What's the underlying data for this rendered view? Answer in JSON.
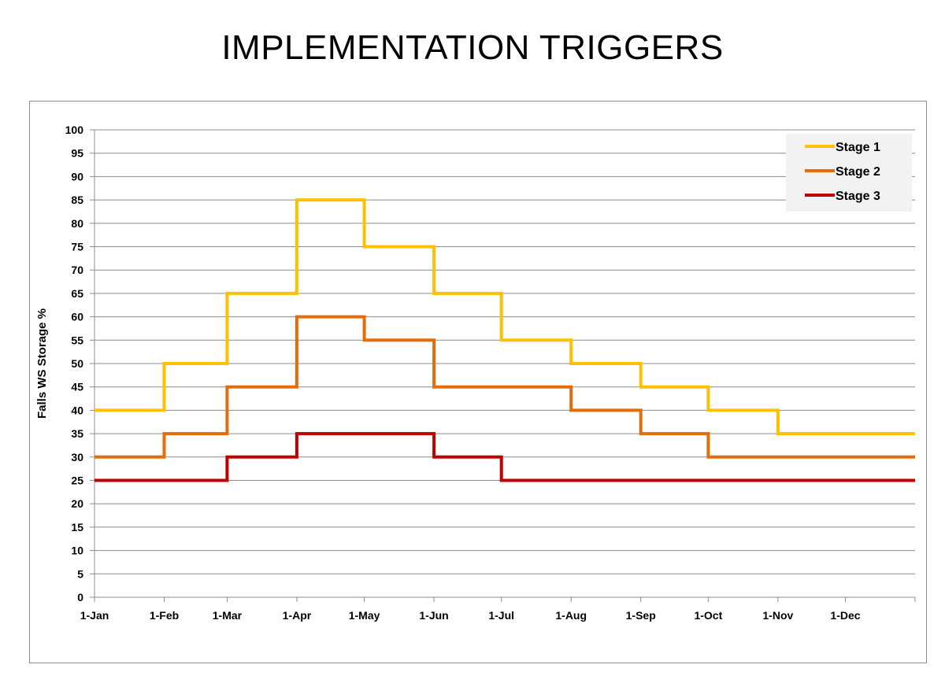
{
  "page": {
    "title": "IMPLEMENTATION TRIGGERS"
  },
  "chart_data": {
    "type": "line",
    "step": true,
    "ylabel": "Falls WS Storage %",
    "xlabel": "",
    "ylim": [
      0,
      100
    ],
    "ytick_step": 5,
    "grid": true,
    "legend_position": "top-right",
    "x_ticks": [
      "1-Jan",
      "1-Feb",
      "1-Mar",
      "1-Apr",
      "1-May",
      "1-Jun",
      "1-Jul",
      "1-Aug",
      "1-Sep",
      "1-Oct",
      "1-Nov",
      "1-Dec"
    ],
    "x_end": "31-Dec",
    "series": [
      {
        "name": "Stage 1",
        "color": "#FFC000",
        "steps": [
          {
            "from": "1-Jan",
            "value": 40
          },
          {
            "from": "1-Feb",
            "value": 50
          },
          {
            "from": "1-Mar",
            "value": 65
          },
          {
            "from": "1-Apr",
            "value": 85
          },
          {
            "from": "1-May",
            "value": 75
          },
          {
            "from": "1-Jun",
            "value": 65
          },
          {
            "from": "1-Jul",
            "value": 55
          },
          {
            "from": "1-Aug",
            "value": 50
          },
          {
            "from": "1-Sep",
            "value": 45
          },
          {
            "from": "1-Oct",
            "value": 40
          },
          {
            "from": "1-Nov",
            "value": 35
          }
        ]
      },
      {
        "name": "Stage 2",
        "color": "#E46C0A",
        "steps": [
          {
            "from": "1-Jan",
            "value": 30
          },
          {
            "from": "1-Feb",
            "value": 35
          },
          {
            "from": "1-Mar",
            "value": 45
          },
          {
            "from": "1-Apr",
            "value": 60
          },
          {
            "from": "1-May",
            "value": 55
          },
          {
            "from": "1-Jun",
            "value": 45
          },
          {
            "from": "1-Aug",
            "value": 40
          },
          {
            "from": "1-Sep",
            "value": 35
          },
          {
            "from": "1-Oct",
            "value": 30
          }
        ]
      },
      {
        "name": "Stage 3",
        "color": "#C00000",
        "steps": [
          {
            "from": "1-Jan",
            "value": 25
          },
          {
            "from": "1-Mar",
            "value": 30
          },
          {
            "from": "1-Apr",
            "value": 35
          },
          {
            "from": "1-Jun",
            "value": 30
          },
          {
            "from": "1-Jul",
            "value": 25
          }
        ]
      }
    ]
  }
}
